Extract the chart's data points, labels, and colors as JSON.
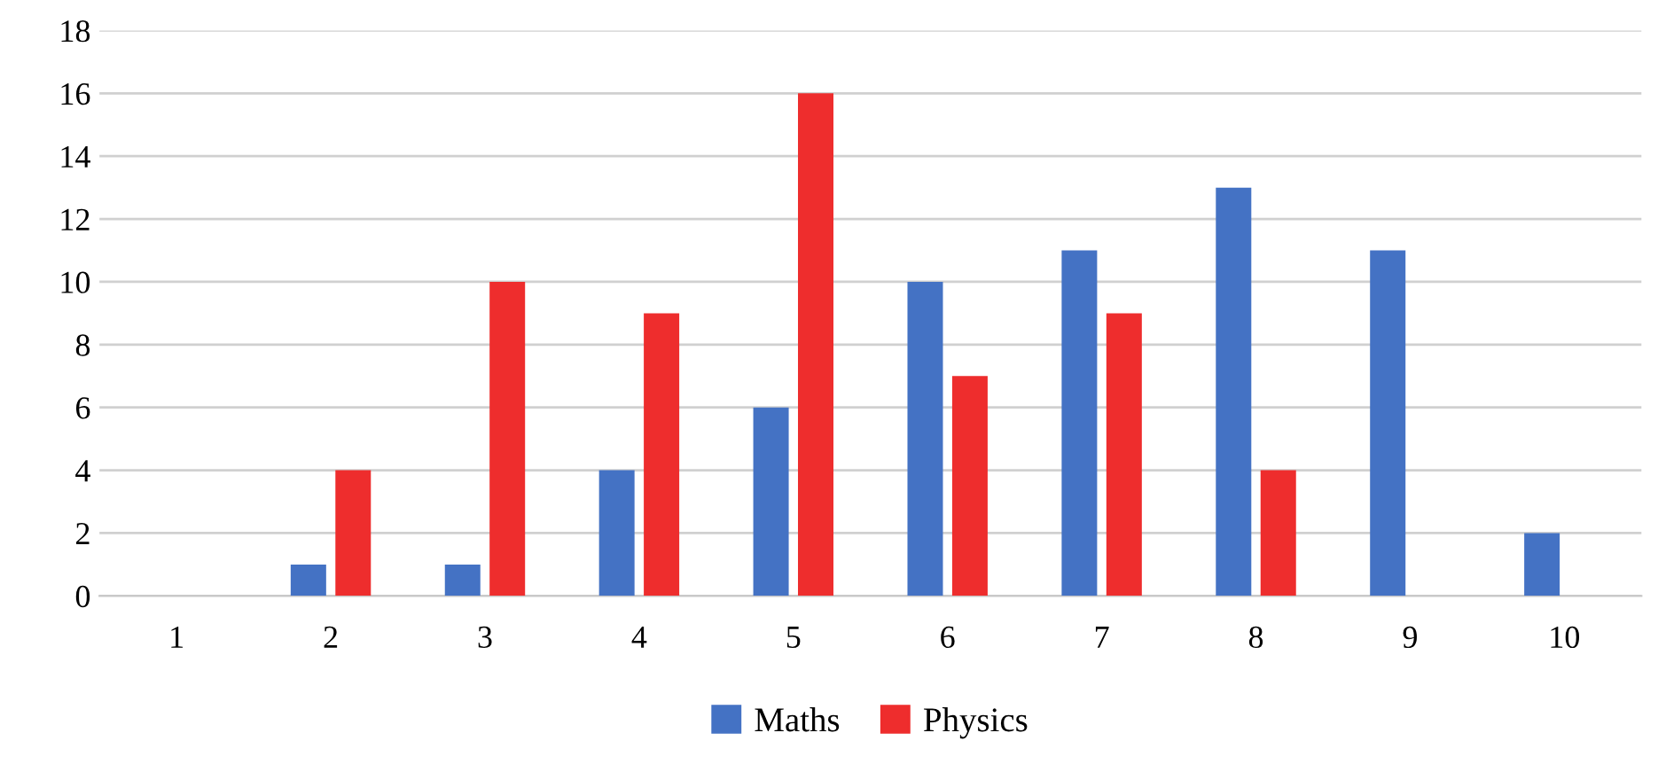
{
  "chart_data": {
    "type": "bar",
    "categories": [
      "1",
      "2",
      "3",
      "4",
      "5",
      "6",
      "7",
      "8",
      "9",
      "10"
    ],
    "series": [
      {
        "name": "Maths",
        "color": "#4472c4",
        "values": [
          0,
          1,
          1,
          4,
          6,
          10,
          11,
          13,
          11,
          2
        ]
      },
      {
        "name": "Physics",
        "color": "#ee2d2d",
        "values": [
          0,
          4,
          10,
          9,
          16,
          7,
          9,
          4,
          0,
          0
        ]
      }
    ],
    "ylim": [
      0,
      18
    ],
    "yticks": [
      0,
      2,
      4,
      6,
      8,
      10,
      12,
      14,
      16,
      18
    ],
    "grid": "y",
    "legend": "bottom"
  }
}
